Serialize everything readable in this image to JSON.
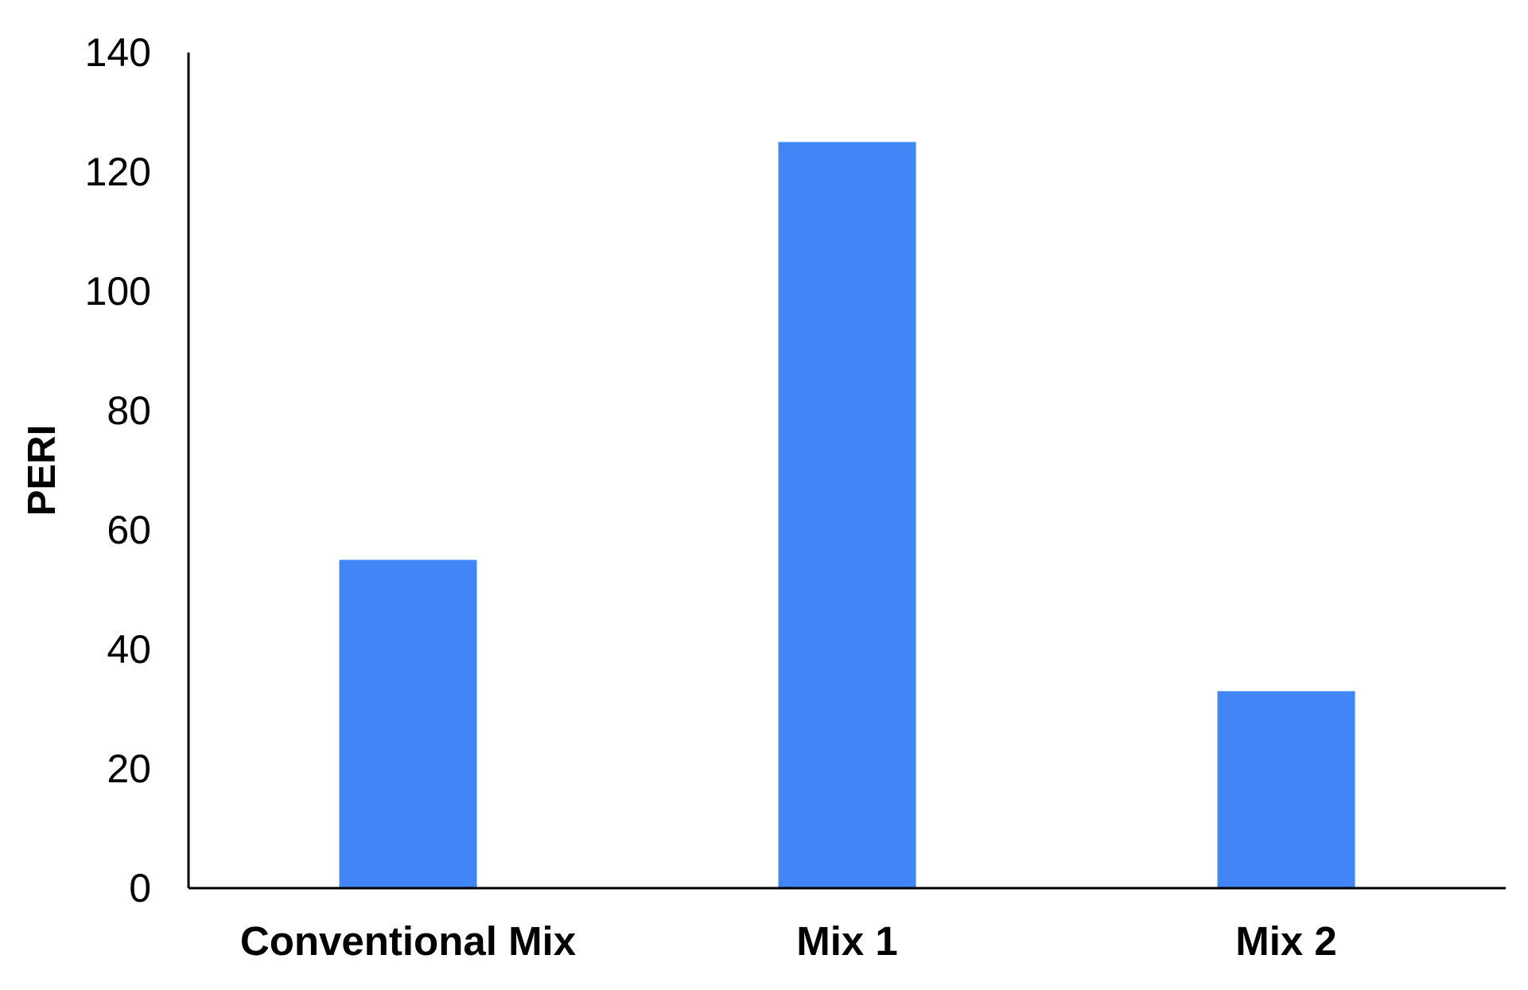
{
  "chart_data": {
    "type": "bar",
    "title": "",
    "xlabel": "",
    "ylabel": "PERI",
    "categories": [
      "Conventional Mix",
      "Mix 1",
      "Mix 2"
    ],
    "values": [
      55,
      125,
      33
    ],
    "ylim": [
      0,
      140
    ],
    "yticks": [
      0,
      20,
      40,
      60,
      80,
      100,
      120,
      140
    ],
    "grid": false,
    "legend": "none",
    "bar_color": "#4285F4",
    "axis_color": "#000000"
  }
}
